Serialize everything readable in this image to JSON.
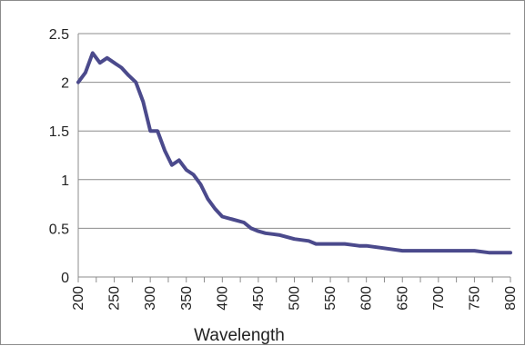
{
  "chart_data": {
    "type": "line",
    "title": "",
    "xlabel": "Wavelength",
    "ylabel": "",
    "xlim": [
      200,
      800
    ],
    "ylim": [
      0,
      2.5
    ],
    "grid": true,
    "legend": "none",
    "line_color": "#4b4a8c",
    "x_ticks": [
      "200",
      "250",
      "300",
      "350",
      "400",
      "450",
      "500",
      "550",
      "600",
      "650",
      "700",
      "750",
      "800"
    ],
    "y_ticks": [
      "0",
      "0.5",
      "1",
      "1.5",
      "2",
      "2.5"
    ],
    "series": [
      {
        "x": [
          200,
          210,
          220,
          230,
          240,
          250,
          260,
          270,
          280,
          290,
          300,
          310,
          320,
          330,
          340,
          350,
          360,
          370,
          380,
          390,
          400,
          420,
          430,
          440,
          450,
          460,
          470,
          480,
          500,
          520,
          530,
          550,
          570,
          590,
          600,
          620,
          650,
          700,
          750,
          770,
          800
        ],
        "y": [
          2.0,
          2.1,
          2.3,
          2.2,
          2.25,
          2.2,
          2.15,
          2.07,
          2.0,
          1.8,
          1.5,
          1.5,
          1.3,
          1.15,
          1.2,
          1.1,
          1.05,
          0.95,
          0.8,
          0.7,
          0.62,
          0.58,
          0.56,
          0.5,
          0.47,
          0.45,
          0.44,
          0.43,
          0.39,
          0.37,
          0.34,
          0.34,
          0.34,
          0.32,
          0.32,
          0.3,
          0.27,
          0.27,
          0.27,
          0.25,
          0.25
        ]
      }
    ]
  }
}
